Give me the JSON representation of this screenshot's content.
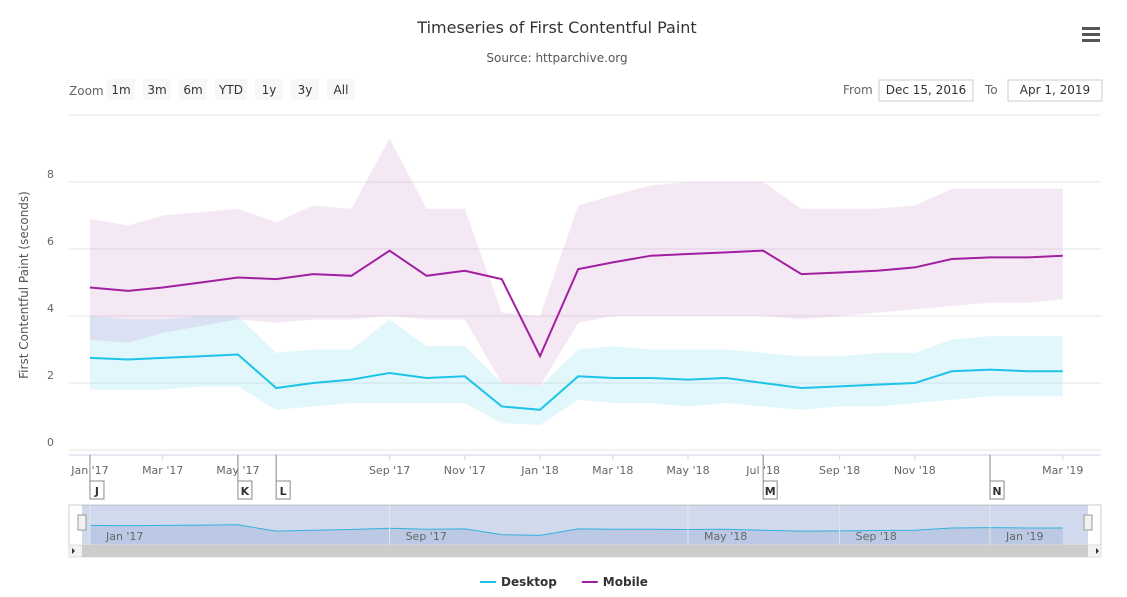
{
  "chart_data": {
    "type": "line",
    "title": "Timeseries of First Contentful Paint",
    "subtitle": "Source: httparchive.org",
    "y_label": "First Contentful Paint (seconds)",
    "range_selector": {
      "zoom_label": "Zoom",
      "buttons": [
        "1m",
        "3m",
        "6m",
        "YTD",
        "1y",
        "3y",
        "All"
      ],
      "from_label": "From",
      "to_label": "To"
    },
    "xlim": [
      "Dec 15, 2016",
      "Apr 1, 2019"
    ],
    "ylim": [
      0,
      10
    ],
    "yticks": [
      0,
      2,
      4,
      6,
      8
    ],
    "grid": true,
    "xticks": [
      {
        "value": "2017-01",
        "label": "Jan '17"
      },
      {
        "value": "2017-03",
        "label": "Mar '17"
      },
      {
        "value": "2017-05",
        "label": "May '17"
      },
      {
        "value": "2017-09",
        "label": "Sep '17"
      },
      {
        "value": "2017-11",
        "label": "Nov '17"
      },
      {
        "value": "2018-01",
        "label": "Jan '18"
      },
      {
        "value": "2018-03",
        "label": "Mar '18"
      },
      {
        "value": "2018-05",
        "label": "May '18"
      },
      {
        "value": "2018-07",
        "label": "Jul '18"
      },
      {
        "value": "2018-09",
        "label": "Sep '18"
      },
      {
        "value": "2018-11",
        "label": "Nov '18"
      },
      {
        "value": "2019-03",
        "label": "Mar '19"
      }
    ],
    "navigator_xticks": [
      {
        "value": "2017-01",
        "label": "Jan '17"
      },
      {
        "value": "2017-09",
        "label": "Sep '17"
      },
      {
        "value": "2018-05",
        "label": "May '18"
      },
      {
        "value": "2018-09",
        "label": "Sep '18"
      },
      {
        "value": "2019-01",
        "label": "Jan '19"
      }
    ],
    "flags": [
      {
        "x": "2017-01",
        "label": "J"
      },
      {
        "x": "2017-05",
        "label": "K"
      },
      {
        "x": "2017-06",
        "label": "L"
      },
      {
        "x": "2018-07",
        "label": "M"
      },
      {
        "x": "2019-01",
        "label": "N"
      }
    ],
    "x": [
      "2017-01",
      "2017-02",
      "2017-03",
      "2017-04",
      "2017-05",
      "2017-06",
      "2017-07",
      "2017-08",
      "2017-09",
      "2017-10",
      "2017-11",
      "2017-12",
      "2018-01",
      "2018-02",
      "2018-03",
      "2018-04",
      "2018-05",
      "2018-06",
      "2018-07",
      "2018-08",
      "2018-09",
      "2018-10",
      "2018-11",
      "2018-12",
      "2019-01",
      "2019-02",
      "2019-03"
    ],
    "series": [
      {
        "name": "Desktop",
        "color": "#1ec3e8",
        "band_color": "rgba(30,195,232,0.13)",
        "values": [
          2.75,
          2.7,
          2.75,
          2.8,
          2.85,
          1.85,
          2.0,
          2.1,
          2.3,
          2.15,
          2.2,
          1.3,
          1.2,
          2.2,
          2.15,
          2.15,
          2.1,
          2.15,
          2.0,
          1.85,
          1.9,
          1.95,
          2.0,
          2.35,
          2.4,
          2.35,
          2.35
        ],
        "low": [
          1.8,
          1.8,
          1.8,
          1.9,
          1.9,
          1.2,
          1.3,
          1.4,
          1.4,
          1.4,
          1.4,
          0.8,
          0.75,
          1.5,
          1.4,
          1.4,
          1.3,
          1.4,
          1.3,
          1.2,
          1.3,
          1.3,
          1.4,
          1.5,
          1.6,
          1.6,
          1.6
        ],
        "high": [
          4.0,
          3.9,
          3.9,
          4.0,
          4.0,
          2.9,
          3.0,
          3.0,
          3.9,
          3.1,
          3.1,
          2.0,
          1.9,
          3.0,
          3.1,
          3.0,
          3.0,
          3.0,
          2.9,
          2.8,
          2.8,
          2.9,
          2.9,
          3.3,
          3.4,
          3.4,
          3.4
        ]
      },
      {
        "name": "Mobile",
        "color": "#a020a0",
        "band_color": "rgba(160,32,160,0.1)",
        "values": [
          4.85,
          4.75,
          4.85,
          5.0,
          5.15,
          5.1,
          5.25,
          5.2,
          5.95,
          5.2,
          5.35,
          5.1,
          2.8,
          5.4,
          5.6,
          5.8,
          5.85,
          5.9,
          5.95,
          5.25,
          5.3,
          5.35,
          5.45,
          5.7,
          5.75,
          5.75,
          5.8
        ],
        "low": [
          3.3,
          3.2,
          3.5,
          3.7,
          3.9,
          3.8,
          3.9,
          3.9,
          4.0,
          3.9,
          3.9,
          2.0,
          1.9,
          3.8,
          4.0,
          4.0,
          4.0,
          4.0,
          4.0,
          3.9,
          4.0,
          4.1,
          4.2,
          4.3,
          4.4,
          4.4,
          4.5
        ],
        "high": [
          6.9,
          6.7,
          7.0,
          7.1,
          7.2,
          6.8,
          7.3,
          7.2,
          9.3,
          7.2,
          7.2,
          4.1,
          4.0,
          7.3,
          7.6,
          7.9,
          8.0,
          8.0,
          8.0,
          7.2,
          7.2,
          7.2,
          7.3,
          7.8,
          7.8,
          7.8,
          7.8
        ]
      }
    ]
  }
}
